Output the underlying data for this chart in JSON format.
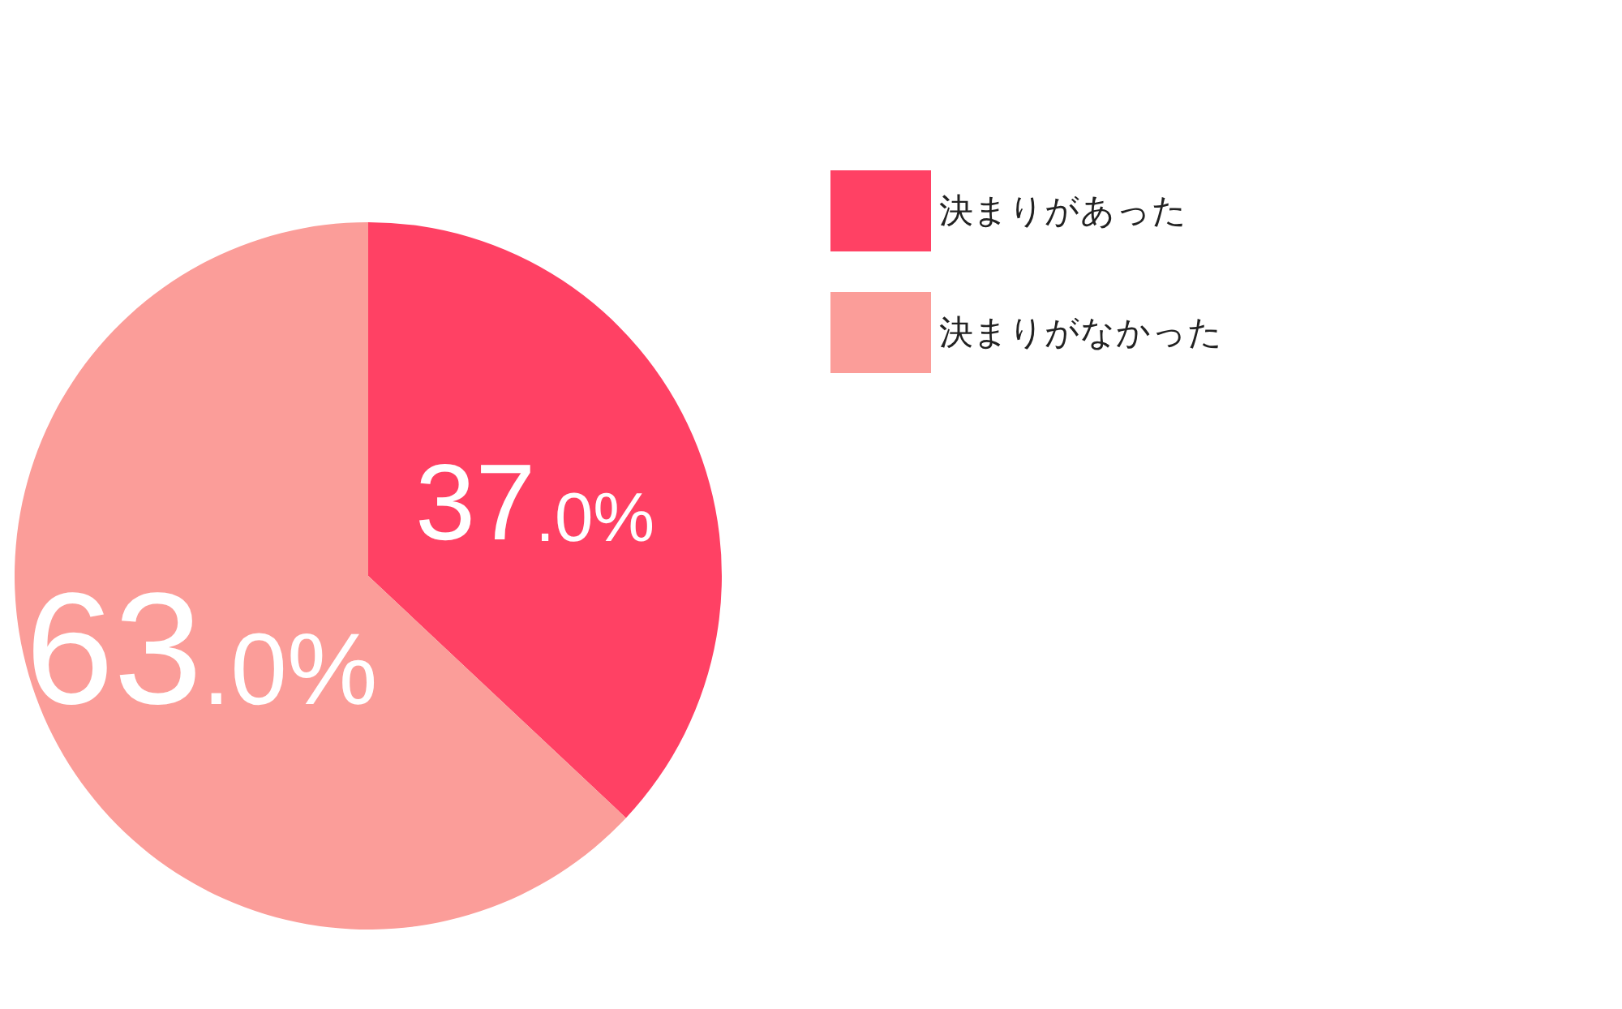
{
  "chart_data": {
    "type": "pie",
    "categories": [
      "決まりがあった",
      "決まりがなかった"
    ],
    "values": [
      37.0,
      63.0
    ],
    "colors": [
      "#ff4164",
      "#fb9d99"
    ],
    "value_labels": [
      "37.0%",
      "63.0%"
    ],
    "legend": "top right"
  }
}
